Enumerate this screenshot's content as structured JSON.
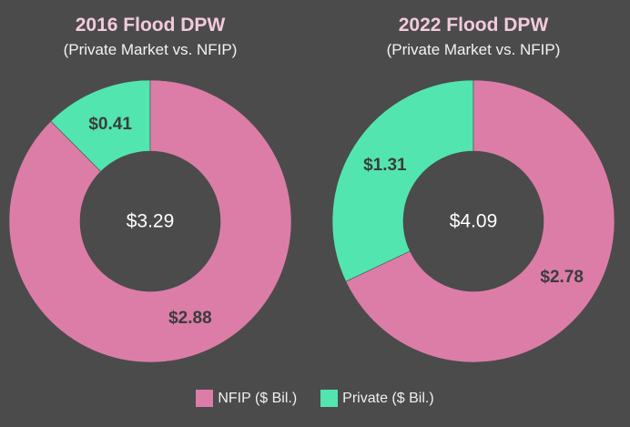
{
  "colors": {
    "background": "#4b4b4b",
    "nfip": "#dc7da8",
    "private": "#52e5b0",
    "slice_label": "#3c3c3c",
    "center_label": "#ffffff",
    "title": "#f3cadc",
    "subtitle": "#f3f3f3"
  },
  "legend": {
    "items": [
      {
        "label": "NFIP ($ Bil.)",
        "color": "#dc7da8"
      },
      {
        "label": "Private ($ Bil.)",
        "color": "#52e5b0"
      }
    ]
  },
  "chart_data": [
    {
      "type": "pie",
      "donut": true,
      "title": "2016 Flood DPW",
      "subtitle": "(Private Market vs. NFIP)",
      "center_label": "$3.29",
      "categories": [
        "Private",
        "NFIP"
      ],
      "values": [
        0.41,
        2.88
      ],
      "value_labels": [
        "$0.41",
        "$2.88"
      ]
    },
    {
      "type": "pie",
      "donut": true,
      "title": "2022 Flood DPW",
      "subtitle": "(Private Market vs. NFIP)",
      "center_label": "$4.09",
      "categories": [
        "Private",
        "NFIP"
      ],
      "values": [
        1.31,
        2.78
      ],
      "value_labels": [
        "$1.31",
        "$2.78"
      ]
    }
  ]
}
